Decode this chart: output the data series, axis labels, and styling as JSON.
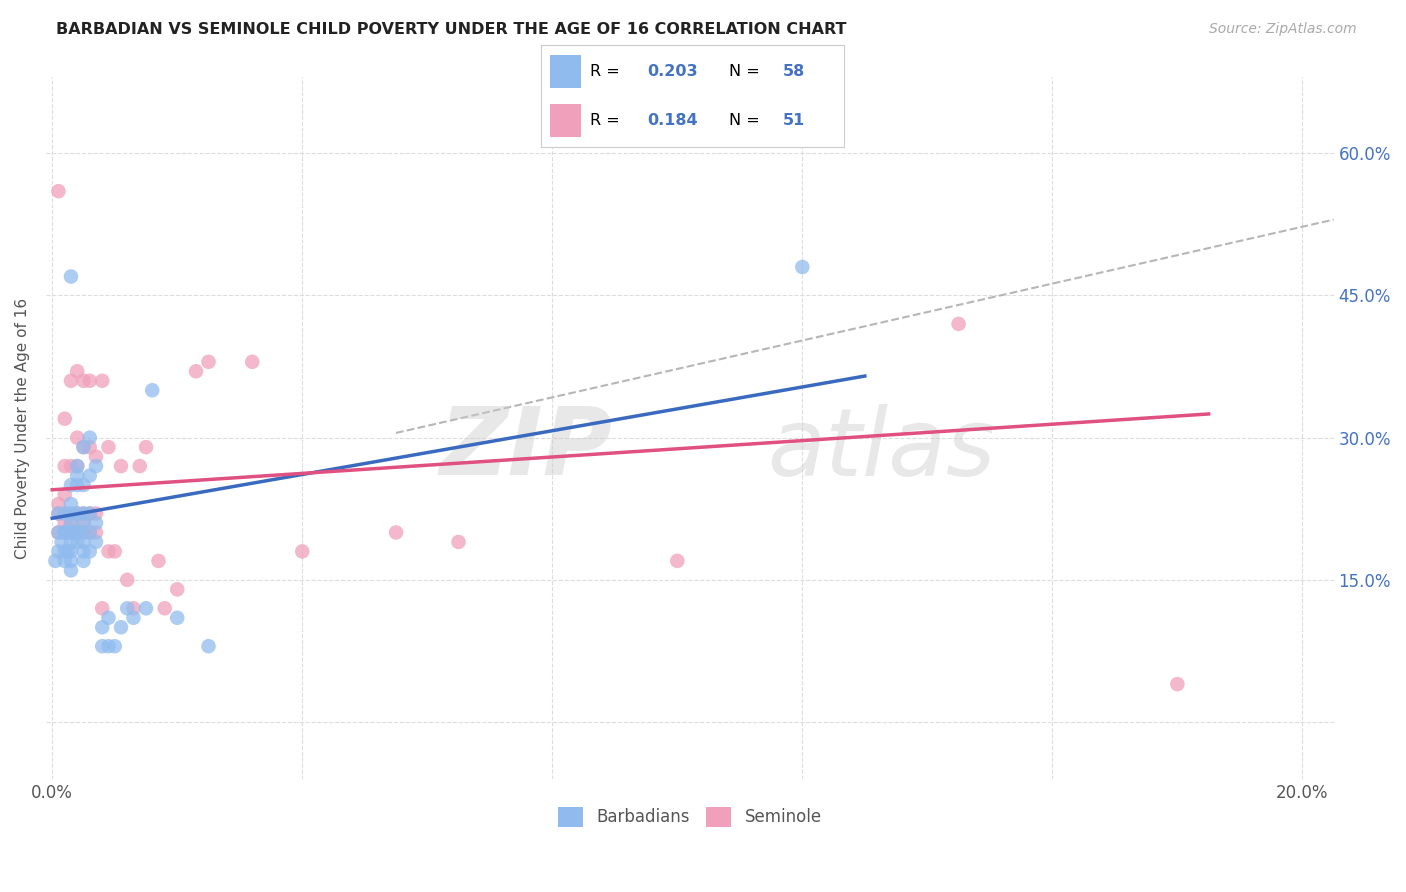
{
  "title": "BARBADIAN VS SEMINOLE CHILD POVERTY UNDER THE AGE OF 16 CORRELATION CHART",
  "source": "Source: ZipAtlas.com",
  "ylabel": "Child Poverty Under the Age of 16",
  "barbadian_color": "#90bbee",
  "seminole_color": "#f0a0bb",
  "barbadian_line_color": "#3a6abf",
  "seminole_line_color": "#e05080",
  "trend_line_color": "#aaaaaa",
  "grid_color": "#dddddd",
  "background_color": "#ffffff",
  "title_color": "#222222",
  "source_color": "#aaaaaa",
  "legend_r_color": "#4472c4",
  "xlim": [
    -0.001,
    0.205
  ],
  "ylim": [
    -0.06,
    0.68
  ],
  "x_tick_positions": [
    0.0,
    0.04,
    0.08,
    0.12,
    0.16,
    0.2
  ],
  "y_tick_positions": [
    0.0,
    0.15,
    0.3,
    0.45,
    0.6
  ],
  "barbadian_x": [
    0.0005,
    0.001,
    0.001,
    0.001,
    0.0015,
    0.002,
    0.002,
    0.002,
    0.002,
    0.002,
    0.0025,
    0.0025,
    0.003,
    0.003,
    0.003,
    0.003,
    0.003,
    0.003,
    0.003,
    0.003,
    0.003,
    0.003,
    0.0035,
    0.004,
    0.004,
    0.004,
    0.004,
    0.004,
    0.004,
    0.005,
    0.005,
    0.005,
    0.005,
    0.005,
    0.005,
    0.005,
    0.005,
    0.006,
    0.006,
    0.006,
    0.006,
    0.006,
    0.007,
    0.007,
    0.007,
    0.008,
    0.008,
    0.009,
    0.009,
    0.01,
    0.011,
    0.012,
    0.013,
    0.015,
    0.016,
    0.02,
    0.025,
    0.12
  ],
  "barbadian_y": [
    0.17,
    0.18,
    0.2,
    0.22,
    0.19,
    0.17,
    0.18,
    0.2,
    0.2,
    0.22,
    0.18,
    0.2,
    0.16,
    0.17,
    0.18,
    0.19,
    0.2,
    0.21,
    0.22,
    0.23,
    0.25,
    0.47,
    0.2,
    0.19,
    0.2,
    0.22,
    0.25,
    0.26,
    0.27,
    0.17,
    0.18,
    0.19,
    0.2,
    0.21,
    0.22,
    0.25,
    0.29,
    0.18,
    0.2,
    0.22,
    0.26,
    0.3,
    0.19,
    0.21,
    0.27,
    0.08,
    0.1,
    0.08,
    0.11,
    0.08,
    0.1,
    0.12,
    0.11,
    0.12,
    0.35,
    0.11,
    0.08,
    0.48
  ],
  "seminole_x": [
    0.001,
    0.001,
    0.001,
    0.001,
    0.002,
    0.002,
    0.002,
    0.002,
    0.002,
    0.002,
    0.003,
    0.003,
    0.003,
    0.003,
    0.004,
    0.004,
    0.004,
    0.004,
    0.004,
    0.005,
    0.005,
    0.005,
    0.005,
    0.005,
    0.006,
    0.006,
    0.006,
    0.006,
    0.007,
    0.007,
    0.007,
    0.008,
    0.008,
    0.009,
    0.009,
    0.01,
    0.011,
    0.012,
    0.013,
    0.014,
    0.015,
    0.017,
    0.018,
    0.02,
    0.023,
    0.025,
    0.032,
    0.04,
    0.055,
    0.065,
    0.1,
    0.145,
    0.18
  ],
  "seminole_y": [
    0.2,
    0.22,
    0.23,
    0.56,
    0.2,
    0.21,
    0.22,
    0.24,
    0.27,
    0.32,
    0.2,
    0.21,
    0.27,
    0.36,
    0.2,
    0.22,
    0.27,
    0.3,
    0.37,
    0.2,
    0.21,
    0.22,
    0.29,
    0.36,
    0.2,
    0.22,
    0.29,
    0.36,
    0.2,
    0.22,
    0.28,
    0.12,
    0.36,
    0.18,
    0.29,
    0.18,
    0.27,
    0.15,
    0.12,
    0.27,
    0.29,
    0.17,
    0.12,
    0.14,
    0.37,
    0.38,
    0.38,
    0.18,
    0.2,
    0.19,
    0.17,
    0.42,
    0.04
  ],
  "barbadian_line_x": [
    0.0,
    0.13
  ],
  "barbadian_line_y": [
    0.215,
    0.365
  ],
  "seminole_line_x": [
    0.0,
    0.185
  ],
  "seminole_line_y": [
    0.245,
    0.325
  ],
  "dashed_line_x": [
    0.055,
    0.205
  ],
  "dashed_line_y": [
    0.305,
    0.53
  ]
}
